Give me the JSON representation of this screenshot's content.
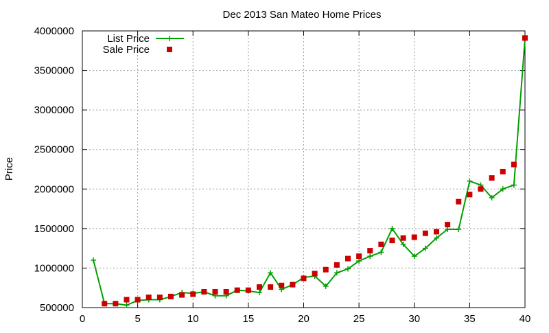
{
  "chart_data": {
    "type": "line",
    "title": "Dec 2013 San Mateo Home Prices",
    "xlabel": "",
    "ylabel": "Price",
    "xlim": [
      0,
      40
    ],
    "ylim": [
      500000,
      4000000
    ],
    "xticks": [
      0,
      5,
      10,
      15,
      20,
      25,
      30,
      35,
      40
    ],
    "yticks": [
      500000,
      1000000,
      1500000,
      2000000,
      2500000,
      3000000,
      3500000,
      4000000
    ],
    "grid": true,
    "legend_position": "top-left",
    "series": [
      {
        "name": "List Price",
        "style": "line-plus",
        "color": "#00a000",
        "x": [
          1,
          2,
          3,
          4,
          5,
          6,
          7,
          8,
          9,
          10,
          11,
          12,
          13,
          14,
          15,
          16,
          17,
          18,
          19,
          20,
          21,
          22,
          23,
          24,
          25,
          26,
          27,
          28,
          29,
          30,
          31,
          32,
          33,
          34,
          35,
          36,
          37,
          38,
          39,
          40
        ],
        "y": [
          1100000,
          550000,
          550000,
          530000,
          590000,
          600000,
          600000,
          640000,
          690000,
          680000,
          700000,
          650000,
          650000,
          720000,
          710000,
          690000,
          940000,
          730000,
          790000,
          880000,
          900000,
          770000,
          940000,
          990000,
          1090000,
          1150000,
          1200000,
          1500000,
          1300000,
          1150000,
          1250000,
          1380000,
          1490000,
          1490000,
          2100000,
          2050000,
          1890000,
          2000000,
          2050000,
          3900000
        ]
      },
      {
        "name": "Sale Price",
        "style": "square-points",
        "color": "#cc0000",
        "x": [
          2,
          3,
          4,
          5,
          6,
          7,
          8,
          9,
          10,
          11,
          12,
          13,
          14,
          15,
          16,
          17,
          18,
          19,
          20,
          21,
          22,
          23,
          24,
          25,
          26,
          27,
          28,
          29,
          30,
          31,
          32,
          33,
          34,
          35,
          36,
          37,
          38,
          39,
          40
        ],
        "y": [
          550000,
          550000,
          600000,
          600000,
          630000,
          630000,
          640000,
          660000,
          670000,
          700000,
          700000,
          700000,
          720000,
          720000,
          760000,
          760000,
          780000,
          790000,
          870000,
          930000,
          980000,
          1040000,
          1120000,
          1150000,
          1220000,
          1300000,
          1350000,
          1380000,
          1390000,
          1440000,
          1460000,
          1550000,
          1840000,
          1930000,
          2000000,
          2140000,
          2220000,
          2310000,
          3910000
        ]
      }
    ]
  }
}
